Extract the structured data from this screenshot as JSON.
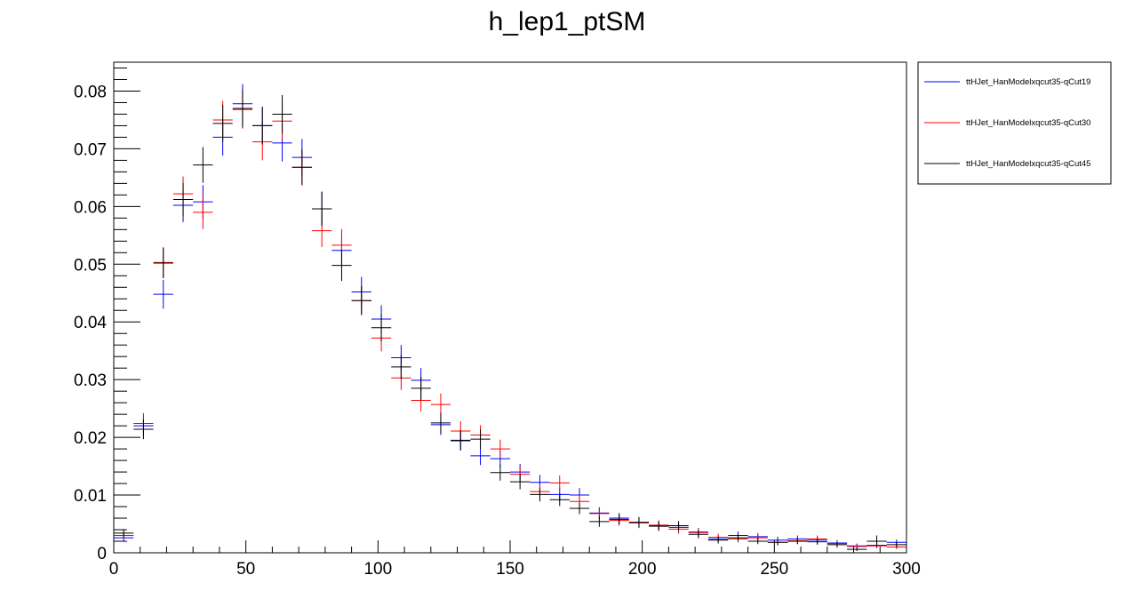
{
  "title": "h_lep1_ptSM",
  "colors": {
    "series1": "#0000ff",
    "series2": "#ff0000",
    "series3": "#000000",
    "axes": "#000000",
    "background": "#ffffff"
  },
  "chart_data": {
    "type": "scatter",
    "style": "histogram-errorbars",
    "title": "h_lep1_ptSM",
    "xlabel": "",
    "ylabel": "",
    "xlim": [
      0,
      300
    ],
    "ylim": [
      0,
      0.085
    ],
    "xticks": [
      0,
      50,
      100,
      150,
      200,
      250,
      300
    ],
    "yticks": [
      0,
      0.01,
      0.02,
      0.03,
      0.04,
      0.05,
      0.06,
      0.07,
      0.08
    ],
    "xtick_labels": [
      "0",
      "50",
      "100",
      "150",
      "200",
      "250",
      "300"
    ],
    "ytick_labels": [
      "0",
      "0.01",
      "0.02",
      "0.03",
      "0.04",
      "0.05",
      "0.06",
      "0.07",
      "0.08"
    ],
    "grid": false,
    "legend_position": "top-right, outside plot",
    "bin_width": 7.5,
    "x": [
      3.75,
      11.25,
      18.75,
      26.25,
      33.75,
      41.25,
      48.75,
      56.25,
      63.75,
      71.25,
      78.75,
      86.25,
      93.75,
      101.25,
      108.75,
      116.25,
      123.75,
      131.25,
      138.75,
      146.25,
      153.75,
      161.25,
      168.75,
      176.25,
      183.75,
      191.25,
      198.75,
      206.25,
      213.75,
      221.25,
      228.75,
      236.25,
      243.75,
      251.25,
      258.75,
      266.25,
      273.75,
      281.25,
      288.75,
      296.25
    ],
    "series": [
      {
        "name": "ttHJet_HanModelxqcut35-qCut19",
        "color": "#0000ff",
        "values": [
          0.0026,
          0.022,
          0.0448,
          0.0602,
          0.0608,
          0.072,
          0.0778,
          0.074,
          0.071,
          0.0685,
          0.0596,
          0.0524,
          0.0452,
          0.0405,
          0.0338,
          0.0299,
          0.0222,
          0.0194,
          0.0168,
          0.0163,
          0.014,
          0.0122,
          0.0101,
          0.01,
          0.0069,
          0.006,
          0.0052,
          0.0047,
          0.0044,
          0.0036,
          0.0024,
          0.003,
          0.0028,
          0.0022,
          0.0024,
          0.0022,
          0.0017,
          0.0012,
          0.0013,
          0.0018
        ],
        "errors": [
          0.0007,
          0.0017,
          0.0025,
          0.0029,
          0.0029,
          0.0032,
          0.0034,
          0.0033,
          0.0032,
          0.0032,
          0.003,
          0.0028,
          0.0026,
          0.0024,
          0.0022,
          0.0021,
          0.0018,
          0.0017,
          0.0016,
          0.0015,
          0.0014,
          0.0013,
          0.0012,
          0.0012,
          0.001,
          0.0009,
          0.0009,
          0.0008,
          0.0008,
          0.0007,
          0.0006,
          0.0007,
          0.0006,
          0.0006,
          0.0006,
          0.0006,
          0.0005,
          0.0004,
          0.0005,
          0.0005
        ]
      },
      {
        "name": "ttHJet_HanModelxqcut35-qCut30",
        "color": "#ff0000",
        "values": [
          0.003,
          0.0224,
          0.0503,
          0.0622,
          0.059,
          0.075,
          0.0768,
          0.0712,
          0.0748,
          0.0668,
          0.0558,
          0.0533,
          0.0437,
          0.0372,
          0.0303,
          0.0264,
          0.0257,
          0.0211,
          0.0204,
          0.018,
          0.0136,
          0.0106,
          0.0121,
          0.0089,
          0.0068,
          0.0056,
          0.0052,
          0.0048,
          0.0041,
          0.0035,
          0.0027,
          0.0024,
          0.0026,
          0.0018,
          0.0021,
          0.0024,
          0.0016,
          0.0011,
          0.0012,
          0.001
        ],
        "errors": [
          0.0007,
          0.0018,
          0.0027,
          0.003,
          0.0029,
          0.0033,
          0.0033,
          0.0032,
          0.0033,
          0.0031,
          0.0028,
          0.0028,
          0.0025,
          0.0023,
          0.0021,
          0.0019,
          0.0019,
          0.0017,
          0.0017,
          0.0016,
          0.0014,
          0.0012,
          0.0013,
          0.0011,
          0.001,
          0.0009,
          0.0009,
          0.0008,
          0.0008,
          0.0007,
          0.0006,
          0.0006,
          0.0006,
          0.0005,
          0.0006,
          0.0006,
          0.0005,
          0.0004,
          0.0004,
          0.0004
        ]
      },
      {
        "name": "ttHJet_HanModelxqcut35-qCut45",
        "color": "#000000",
        "values": [
          0.0034,
          0.0214,
          0.0502,
          0.0612,
          0.0672,
          0.0744,
          0.077,
          0.074,
          0.076,
          0.0668,
          0.0596,
          0.0498,
          0.0437,
          0.039,
          0.0322,
          0.0285,
          0.0225,
          0.0195,
          0.0197,
          0.0139,
          0.0123,
          0.0101,
          0.0092,
          0.0077,
          0.0054,
          0.0058,
          0.0053,
          0.0046,
          0.0047,
          0.0032,
          0.0022,
          0.0026,
          0.002,
          0.0018,
          0.002,
          0.0019,
          0.0014,
          0.0006,
          0.002,
          0.0014
        ],
        "errors": [
          0.0007,
          0.0017,
          0.0026,
          0.0029,
          0.0031,
          0.0032,
          0.0033,
          0.0032,
          0.0033,
          0.0031,
          0.0029,
          0.0027,
          0.0025,
          0.0024,
          0.0021,
          0.002,
          0.0018,
          0.0017,
          0.0017,
          0.0014,
          0.0013,
          0.0012,
          0.0011,
          0.001,
          0.0009,
          0.0009,
          0.0009,
          0.0008,
          0.0008,
          0.0007,
          0.0006,
          0.0006,
          0.0005,
          0.0005,
          0.0005,
          0.0005,
          0.0005,
          0.0003,
          0.001,
          0.0005
        ]
      }
    ]
  }
}
